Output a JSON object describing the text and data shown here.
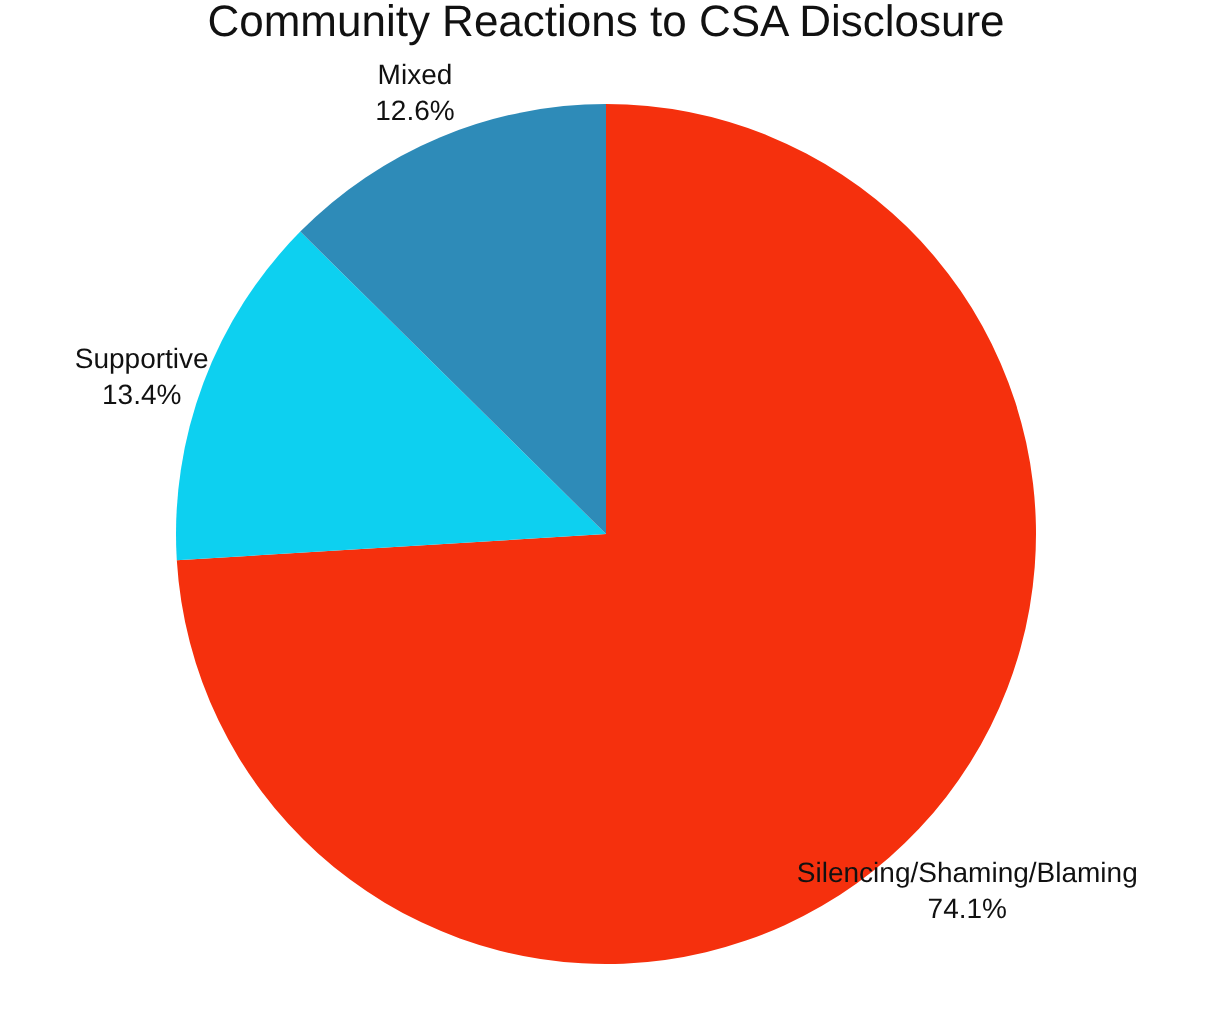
{
  "chart_data": {
    "type": "pie",
    "title": "Community Reactions to CSA Disclosure",
    "categories": [
      "Silencing/Shaming/Blaming",
      "Supportive",
      "Mixed"
    ],
    "values": [
      74.1,
      13.4,
      12.6
    ],
    "value_labels": [
      "74.1%",
      "13.4%",
      "12.6%"
    ],
    "colors": [
      "#f5300d",
      "#0dd0f0",
      "#2e8bb8"
    ]
  }
}
